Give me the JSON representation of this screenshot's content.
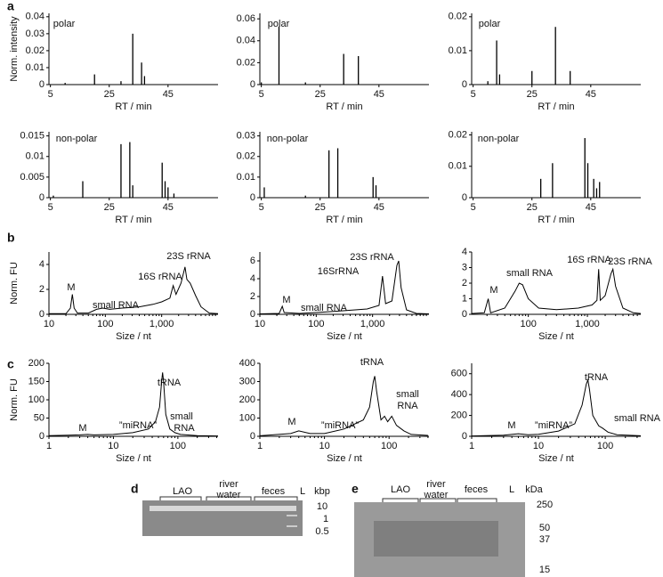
{
  "panel_labels": [
    "a",
    "b",
    "c",
    "d",
    "e"
  ],
  "chart_data": [
    {
      "type": "stem",
      "annotations": [
        "polar"
      ],
      "y_label": "Norm. intensity",
      "x_label": "RT / min",
      "color": "#000",
      "x": [
        10,
        20,
        29,
        33,
        36,
        37
      ],
      "values": [
        0.001,
        0.006,
        0.002,
        0.03,
        0.013,
        0.005
      ],
      "xlim": [
        4.5,
        62
      ],
      "ylim": [
        0,
        0.042
      ],
      "xticks": [
        5,
        25,
        45
      ],
      "yticks": [
        0,
        0.01,
        0.02,
        0.03,
        0.04
      ]
    },
    {
      "type": "stem",
      "annotations": [
        "polar"
      ],
      "x_label": "RT / min",
      "color": "#000",
      "x": [
        5,
        11,
        20,
        33,
        38
      ],
      "values": [
        0.002,
        0.053,
        0.002,
        0.028,
        0.026
      ],
      "xlim": [
        4.5,
        62
      ],
      "ylim": [
        0,
        0.065
      ],
      "xticks": [
        5,
        25,
        45
      ],
      "yticks": [
        0,
        0.02,
        0.04,
        0.06
      ]
    },
    {
      "type": "stem",
      "annotations": [
        "polar"
      ],
      "x_label": "RT / min",
      "color": "#000",
      "x": [
        10,
        13,
        14,
        25,
        33,
        38
      ],
      "values": [
        0.001,
        0.013,
        0.003,
        0.004,
        0.017,
        0.004
      ],
      "xlim": [
        4.5,
        62
      ],
      "ylim": [
        0,
        0.021
      ],
      "xticks": [
        5,
        25,
        45
      ],
      "yticks": [
        0,
        0.01,
        0.02
      ]
    },
    {
      "type": "stem",
      "annotations": [
        "non-polar"
      ],
      "x_label": "RT / min",
      "color": "#000",
      "x": [
        6,
        16,
        29,
        32,
        33,
        43,
        44,
        45,
        47
      ],
      "values": [
        0.0005,
        0.004,
        0.013,
        0.0135,
        0.003,
        0.0085,
        0.004,
        0.0025,
        0.001
      ],
      "xlim": [
        4.5,
        62
      ],
      "ylim": [
        0,
        0.016
      ],
      "xticks": [
        5,
        25,
        45
      ],
      "yticks": [
        0,
        0.005,
        0.01,
        0.015
      ]
    },
    {
      "type": "stem",
      "annotations": [
        "non-polar"
      ],
      "x_label": "RT / min",
      "color": "#000",
      "x": [
        6,
        20,
        28,
        31,
        43,
        44
      ],
      "values": [
        0.005,
        0.001,
        0.023,
        0.024,
        0.01,
        0.006
      ],
      "xlim": [
        4.5,
        62
      ],
      "ylim": [
        0,
        0.032
      ],
      "xticks": [
        5,
        25,
        45
      ],
      "yticks": [
        0,
        0.01,
        0.02,
        0.03
      ]
    },
    {
      "type": "stem",
      "annotations": [
        "non-polar"
      ],
      "x_label": "RT / min",
      "color": "#000",
      "x": [
        28,
        32,
        43,
        44,
        46,
        47,
        48
      ],
      "values": [
        0.006,
        0.011,
        0.019,
        0.011,
        0.006,
        0.003,
        0.005
      ],
      "xlim": [
        4.5,
        62
      ],
      "ylim": [
        0,
        0.021
      ],
      "xticks": [
        5,
        25,
        45
      ],
      "yticks": [
        0,
        0.01,
        0.02
      ]
    },
    {
      "type": "line",
      "xscale": "log",
      "annotations": [
        "M",
        "small RNA",
        "16S rRNA",
        "23S rRNA"
      ],
      "y_label": "Norm. FU",
      "x_label": "Size / nt",
      "color": "#000",
      "x": [
        10,
        20,
        24,
        26,
        28,
        32,
        50,
        70,
        90,
        120,
        200,
        400,
        700,
        1000,
        1400,
        1600,
        1800,
        2200,
        2600,
        2800,
        3200,
        4000,
        5000,
        7000,
        10000
      ],
      "values": [
        0.05,
        0.05,
        0.5,
        1.6,
        0.5,
        0.1,
        0.1,
        0.4,
        0.5,
        0.4,
        0.5,
        0.6,
        0.8,
        1.0,
        1.3,
        2.3,
        1.6,
        2.5,
        3.8,
        2.8,
        2.5,
        1.5,
        0.6,
        0.1,
        0.05
      ],
      "xlim": [
        10,
        10000
      ],
      "ylim": [
        0,
        5
      ],
      "xticks": [
        10,
        100,
        {
          "value": 1000,
          "label": "1,000"
        }
      ],
      "yticks": [
        0,
        2,
        4
      ]
    },
    {
      "type": "line",
      "xscale": "log",
      "annotations": [
        "M",
        "small RNA",
        "16SrRNA",
        "23S rRNA"
      ],
      "x_label": "Size / nt",
      "color": "#000",
      "x": [
        10,
        22,
        25,
        27,
        50,
        100,
        300,
        800,
        1300,
        1500,
        1700,
        2200,
        2700,
        2900,
        3200,
        4000,
        6000,
        10000
      ],
      "values": [
        0.05,
        0.1,
        0.9,
        0.2,
        0.1,
        0.2,
        0.4,
        0.6,
        1.0,
        4.3,
        1.2,
        1.5,
        5.5,
        6.0,
        3.0,
        0.5,
        0.1,
        0.05
      ],
      "xlim": [
        10,
        10000
      ],
      "ylim": [
        0,
        7
      ],
      "xticks": [
        10,
        100,
        {
          "value": 1000,
          "label": "1,000"
        }
      ],
      "yticks": [
        0,
        2,
        4,
        6
      ]
    },
    {
      "type": "line",
      "xscale": "log",
      "annotations": [
        "M",
        "small RNA",
        "16S rRNA",
        "23S rRNA"
      ],
      "x_label": "Size / nt",
      "color": "#000",
      "x": [
        11,
        18,
        21,
        23,
        40,
        60,
        70,
        80,
        100,
        150,
        300,
        700,
        1200,
        1450,
        1550,
        1650,
        2000,
        2500,
        2700,
        3000,
        4000,
        6000,
        8000
      ],
      "values": [
        0.05,
        0.1,
        1.0,
        0.1,
        0.4,
        1.5,
        2.0,
        1.9,
        1.0,
        0.4,
        0.3,
        0.4,
        0.6,
        0.9,
        2.9,
        0.9,
        1.2,
        2.6,
        2.9,
        1.8,
        0.4,
        0.1,
        0.05
      ],
      "xlim": [
        11,
        8000
      ],
      "ylim": [
        0,
        4
      ],
      "xticks": [
        100,
        {
          "value": 1000,
          "label": "1,000"
        }
      ],
      "yticks": [
        0,
        1,
        2,
        3,
        4
      ]
    },
    {
      "type": "line",
      "xscale": "log",
      "annotations": [
        "M",
        "”miRNA”",
        "tRNA",
        "small",
        "RNA"
      ],
      "y_label": "Norm. FU",
      "x_label": "Size / nt",
      "color": "#000",
      "x": [
        1,
        2,
        3,
        4,
        5,
        10,
        20,
        35,
        45,
        52,
        56,
        58,
        60,
        65,
        75,
        90,
        110,
        200,
        420
      ],
      "values": [
        2,
        3,
        4,
        5,
        4,
        5,
        10,
        20,
        40,
        80,
        150,
        175,
        150,
        60,
        20,
        10,
        5,
        2,
        1
      ],
      "xlim": [
        1,
        420
      ],
      "ylim": [
        0,
        200
      ],
      "xticks": [
        1,
        10,
        100
      ],
      "yticks": [
        0,
        50,
        100,
        150,
        200
      ]
    },
    {
      "type": "line",
      "xscale": "log",
      "annotations": [
        "M",
        "”miRNA”",
        "tRNA",
        "small",
        "RNA"
      ],
      "x_label": "Size / nt",
      "color": "#000",
      "x": [
        1,
        3,
        4,
        6,
        10,
        20,
        40,
        50,
        57,
        60,
        64,
        75,
        85,
        95,
        110,
        130,
        170,
        220,
        400
      ],
      "values": [
        3,
        15,
        30,
        15,
        15,
        40,
        90,
        160,
        300,
        330,
        250,
        90,
        110,
        80,
        110,
        60,
        30,
        10,
        5
      ],
      "xlim": [
        1,
        414
      ],
      "ylim": [
        0,
        400
      ],
      "xticks": [
        1,
        10,
        100
      ],
      "yticks": [
        0,
        100,
        200,
        300,
        400
      ]
    },
    {
      "type": "line",
      "xscale": "log",
      "annotations": [
        "M",
        "”miRNA”",
        "tRNA",
        "small RNA"
      ],
      "x_label": "Size / nt",
      "color": "#000",
      "x": [
        1,
        3,
        5,
        7,
        10,
        20,
        35,
        45,
        52,
        55,
        58,
        65,
        80,
        90,
        110,
        150,
        340
      ],
      "values": [
        3,
        10,
        25,
        15,
        20,
        50,
        120,
        300,
        500,
        540,
        450,
        200,
        100,
        80,
        40,
        15,
        5
      ],
      "xlim": [
        1,
        340
      ],
      "ylim": [
        0,
        700
      ],
      "xticks": [
        1,
        10,
        100
      ],
      "yticks": [
        0,
        200,
        400,
        600
      ]
    }
  ],
  "gels": [
    {
      "lanes": [
        "LAO",
        "river water",
        "feces",
        "L"
      ],
      "unit": "kbp",
      "markers": [
        "10",
        "1",
        "0.5"
      ]
    },
    {
      "lanes": [
        "LAO",
        "river water",
        "feces",
        "L"
      ],
      "unit": "kDa",
      "markers": [
        "250",
        "50",
        "37",
        "15"
      ]
    }
  ]
}
